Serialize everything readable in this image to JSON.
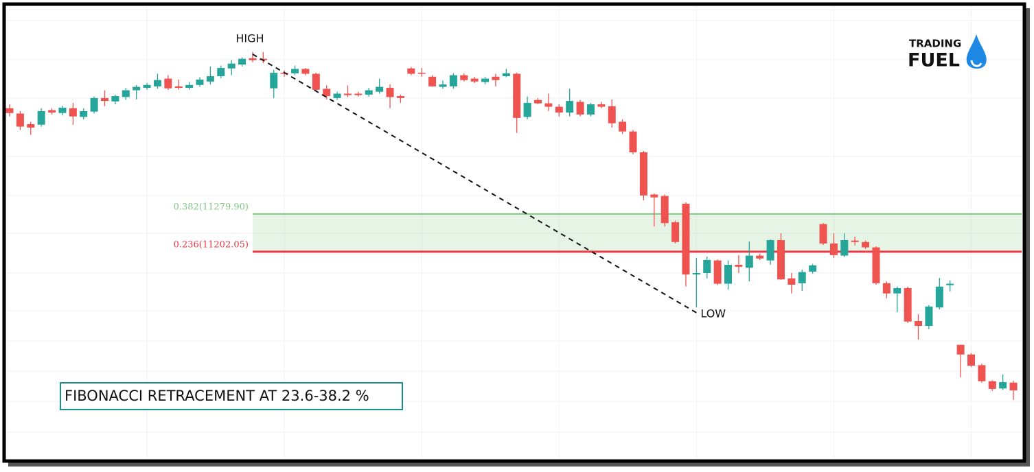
{
  "chart_data": {
    "type": "candlestick",
    "up_color": "#26a69a",
    "down_color": "#ef5350",
    "grid": true,
    "ylim": [
      10776,
      11707
    ],
    "open": [
      11498,
      11487,
      11465,
      11464,
      11494,
      11488,
      11498,
      11480,
      11491,
      11519,
      11512,
      11521,
      11535,
      11540,
      11543,
      11559,
      11543,
      11540,
      11546,
      11553,
      11564,
      11580,
      11588,
      11601,
      11600,
      11539,
      11571,
      11570,
      11579,
      11569,
      11538,
      11519,
      11528,
      11528,
      11526,
      11532,
      11540,
      11523,
      11580,
      11571,
      11563,
      11542,
      11543,
      11566,
      11559,
      11552,
      11563,
      11564,
      11569,
      11480,
      11515,
      11508,
      11501,
      11489,
      11511,
      11485,
      11506,
      11502,
      11470,
      11450,
      11407,
      11320,
      11317,
      11263,
      11301,
      11155,
      11158,
      11184,
      11136,
      11175,
      11169,
      11194,
      11184,
      11226,
      11147,
      11137,
      11161,
      11259,
      11219,
      11194,
      11225,
      11222,
      11211,
      11137,
      11116,
      11127,
      11059,
      11049,
      11087,
      11133,
      11010,
      10990,
      10968,
      10935,
      10920,
      10932
    ],
    "high": [
      11506,
      11492,
      11470,
      11498,
      11498,
      11503,
      11509,
      11498,
      11522,
      11535,
      11526,
      11540,
      11546,
      11550,
      11569,
      11566,
      11557,
      11552,
      11562,
      11584,
      11586,
      11597,
      11603,
      11614,
      11614,
      11577,
      11576,
      11586,
      11581,
      11571,
      11545,
      11532,
      11545,
      11532,
      11540,
      11559,
      11547,
      11526,
      11583,
      11581,
      11566,
      11555,
      11570,
      11570,
      11563,
      11563,
      11569,
      11579,
      11571,
      11522,
      11519,
      11528,
      11506,
      11538,
      11515,
      11509,
      11511,
      11516,
      11475,
      11453,
      11410,
      11322,
      11320,
      11266,
      11304,
      11189,
      11192,
      11186,
      11184,
      11195,
      11223,
      11198,
      11227,
      11240,
      11158,
      11165,
      11177,
      11261,
      11240,
      11240,
      11233,
      11225,
      11213,
      11141,
      11130,
      11130,
      11073,
      11092,
      11148,
      11143,
      11010,
      10993,
      10971,
      10937,
      10949,
      10936
    ],
    "low": [
      11481,
      11453,
      11443,
      11460,
      11485,
      11483,
      11464,
      11475,
      11487,
      11502,
      11506,
      11515,
      11516,
      11536,
      11538,
      11536,
      11536,
      11536,
      11542,
      11547,
      11560,
      11566,
      11584,
      11593,
      11591,
      11519,
      11563,
      11566,
      11566,
      11533,
      11516,
      11515,
      11521,
      11522,
      11522,
      11528,
      11498,
      11509,
      11566,
      11563,
      11542,
      11538,
      11538,
      11553,
      11550,
      11547,
      11543,
      11562,
      11447,
      11475,
      11506,
      11492,
      11481,
      11481,
      11481,
      11481,
      11498,
      11458,
      11445,
      11403,
      11308,
      11254,
      11254,
      11219,
      11130,
      11087,
      11147,
      11133,
      11124,
      11158,
      11141,
      11185,
      11175,
      11144,
      11116,
      11121,
      11157,
      11216,
      11189,
      11191,
      11215,
      11208,
      11134,
      11106,
      11077,
      11055,
      11021,
      11042,
      11083,
      11120,
      10943,
      10964,
      10932,
      10915,
      10917,
      10896
    ],
    "close": [
      11488,
      11460,
      11458,
      11492,
      11489,
      11499,
      11481,
      11492,
      11519,
      11513,
      11523,
      11535,
      11542,
      11546,
      11556,
      11539,
      11540,
      11546,
      11557,
      11564,
      11581,
      11590,
      11600,
      11597,
      11597,
      11571,
      11569,
      11579,
      11569,
      11536,
      11523,
      11528,
      11525,
      11525,
      11535,
      11542,
      11521,
      11519,
      11569,
      11569,
      11543,
      11547,
      11566,
      11556,
      11553,
      11559,
      11556,
      11570,
      11478,
      11509,
      11508,
      11501,
      11489,
      11513,
      11485,
      11506,
      11501,
      11467,
      11450,
      11407,
      11318,
      11314,
      11261,
      11222,
      11155,
      11158,
      11185,
      11136,
      11175,
      11171,
      11194,
      11188,
      11226,
      11145,
      11134,
      11160,
      11174,
      11219,
      11195,
      11226,
      11222,
      11211,
      11137,
      11116,
      11127,
      11058,
      11049,
      11089,
      11130,
      11136,
      10990,
      10967,
      10935,
      10919,
      10933,
      10916
    ],
    "trendline": {
      "from": {
        "index": 23,
        "value": 11609.4,
        "label": "HIGH"
      },
      "to": {
        "index": 65,
        "value": 11076.2,
        "label": "LOW"
      }
    },
    "fib_levels": [
      {
        "value": 11279.9,
        "label": "0.382(11279.90)",
        "color": "#81c784"
      },
      {
        "value": 11202.05,
        "label": "0.236(11202.05)",
        "color": "#f23645"
      }
    ],
    "caption": "FIBONACCI RETRACEMENT AT 23.6-38.2 %"
  },
  "logo": {
    "line1": "TRADING",
    "line2": "FUEL"
  }
}
